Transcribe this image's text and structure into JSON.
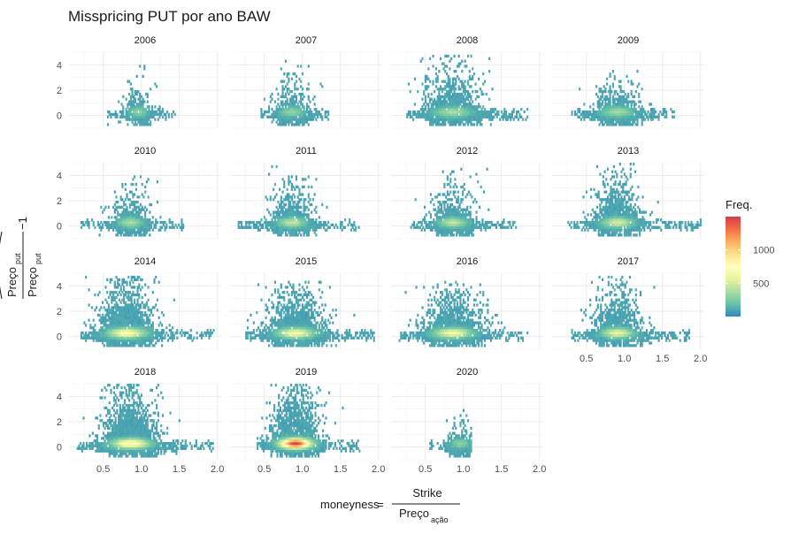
{
  "chart_data": {
    "type": "heatmap",
    "title": "Misspricing PUT por ano BAW",
    "xlabel": {
      "prefix": "moneyness",
      "numerator": "Strike",
      "denominator_base": "Preço",
      "denominator_sub": "ação"
    },
    "ylabel": {
      "numerator_base": "Preço",
      "numerator_sub": "put",
      "denominator_base": "Preço",
      "denominator_sub": "put",
      "suffix": "−1"
    },
    "xlim": [
      0.05,
      2.05
    ],
    "ylim": [
      -1,
      5
    ],
    "x_ticks": [
      0.5,
      1.0,
      1.5,
      2.0
    ],
    "x_tick_labels": [
      "0.5",
      "1.0",
      "1.5",
      "2.0"
    ],
    "y_ticks": [
      0,
      2,
      4
    ],
    "y_tick_labels": [
      "0",
      "2",
      "4"
    ],
    "grid": true,
    "legend": {
      "title": "Freq.",
      "position": "right",
      "range": [
        0,
        1500
      ],
      "ticks": [
        500,
        1000
      ],
      "tick_labels": [
        "500",
        "1000"
      ],
      "colors": [
        "#3288bd",
        "#66c2a5",
        "#abdda4",
        "#e6f598",
        "#ffffbf",
        "#fee08b",
        "#fdae61",
        "#f46d43",
        "#d53e4f"
      ]
    },
    "panels": [
      {
        "year": "2006",
        "center": 0.95,
        "spread": 0.15,
        "x_range": [
          0.55,
          1.45
        ],
        "peak_y": 4.1,
        "hot": 0.15,
        "dense": 0.7
      },
      {
        "year": "2007",
        "center": 0.85,
        "spread": 0.2,
        "x_range": [
          0.45,
          1.35
        ],
        "peak_y": 4.5,
        "hot": 0.15,
        "dense": 0.7
      },
      {
        "year": "2008",
        "center": 0.85,
        "spread": 0.3,
        "x_range": [
          0.25,
          1.85
        ],
        "peak_y": 4.8,
        "hot": 0.2,
        "dense": 1.2
      },
      {
        "year": "2009",
        "center": 0.9,
        "spread": 0.25,
        "x_range": [
          0.3,
          1.65
        ],
        "peak_y": 3.5,
        "hot": 0.2,
        "dense": 0.8
      },
      {
        "year": "2010",
        "center": 0.85,
        "spread": 0.2,
        "x_range": [
          0.2,
          1.55
        ],
        "peak_y": 4.0,
        "hot": 0.2,
        "dense": 0.9
      },
      {
        "year": "2011",
        "center": 0.85,
        "spread": 0.22,
        "x_range": [
          0.15,
          1.75
        ],
        "peak_y": 4.8,
        "hot": 0.25,
        "dense": 1.0
      },
      {
        "year": "2012",
        "center": 0.85,
        "spread": 0.22,
        "x_range": [
          0.3,
          1.7
        ],
        "peak_y": 4.6,
        "hot": 0.25,
        "dense": 1.0
      },
      {
        "year": "2013",
        "center": 0.9,
        "spread": 0.25,
        "x_range": [
          0.25,
          2.0
        ],
        "peak_y": 4.9,
        "hot": 0.3,
        "dense": 1.2
      },
      {
        "year": "2014",
        "center": 0.8,
        "spread": 0.3,
        "x_range": [
          0.2,
          1.95
        ],
        "peak_y": 4.8,
        "hot": 0.45,
        "dense": 1.5
      },
      {
        "year": "2015",
        "center": 0.9,
        "spread": 0.3,
        "x_range": [
          0.25,
          1.95
        ],
        "peak_y": 4.3,
        "hot": 0.4,
        "dense": 1.3
      },
      {
        "year": "2016",
        "center": 0.85,
        "spread": 0.3,
        "x_range": [
          0.15,
          1.85
        ],
        "peak_y": 4.3,
        "hot": 0.4,
        "dense": 1.3
      },
      {
        "year": "2017",
        "center": 0.9,
        "spread": 0.25,
        "x_range": [
          0.3,
          1.85
        ],
        "peak_y": 4.7,
        "hot": 0.35,
        "dense": 1.2
      },
      {
        "year": "2018",
        "center": 0.85,
        "spread": 0.3,
        "x_range": [
          0.15,
          1.95
        ],
        "peak_y": 4.9,
        "hot": 0.5,
        "dense": 1.6
      },
      {
        "year": "2019",
        "center": 0.9,
        "spread": 0.25,
        "x_range": [
          0.4,
          1.75
        ],
        "peak_y": 4.9,
        "hot": 1.0,
        "dense": 1.7
      },
      {
        "year": "2020",
        "center": 0.95,
        "spread": 0.15,
        "x_range": [
          0.55,
          1.1
        ],
        "peak_y": 3.0,
        "hot": 0.15,
        "dense": 0.6
      }
    ],
    "x_axis_panels": [
      "2017",
      "2018",
      "2019",
      "2020"
    ]
  }
}
